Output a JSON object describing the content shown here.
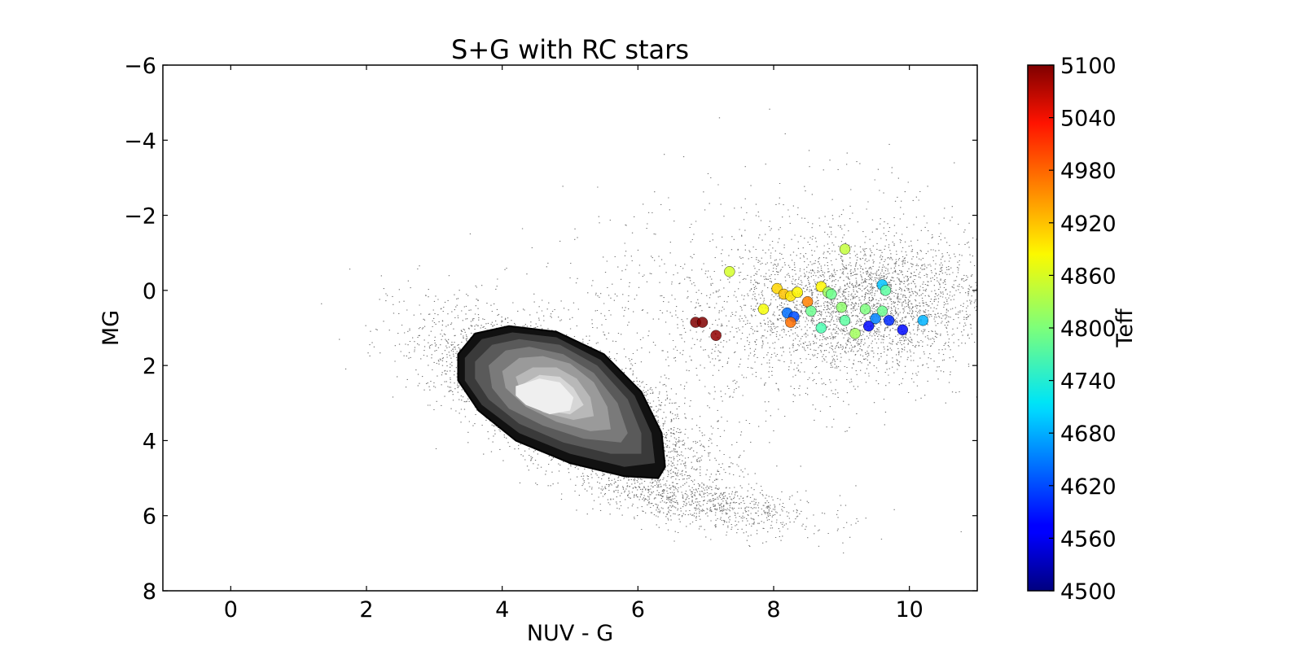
{
  "chart_data": {
    "type": "scatter",
    "title": "S+G with RC stars",
    "xlabel": "NUV - G",
    "ylabel": "MG",
    "xlim": [
      -1,
      11
    ],
    "ylim": [
      8,
      -6
    ],
    "y_inverted": true,
    "xticks": [
      0,
      2,
      4,
      6,
      8,
      10
    ],
    "yticks": [
      -6,
      -4,
      -2,
      0,
      2,
      4,
      6,
      8
    ],
    "grid": false,
    "background_distribution": {
      "description_shown": "dense black point cloud with filled grayscale density contours",
      "color": "#000000",
      "contour_levels": [
        {
          "fill": "#111111",
          "ring": [
            [
              3.35,
              1.7
            ],
            [
              3.6,
              1.15
            ],
            [
              4.1,
              0.95
            ],
            [
              4.8,
              1.1
            ],
            [
              5.5,
              1.7
            ],
            [
              6.05,
              2.7
            ],
            [
              6.35,
              3.8
            ],
            [
              6.4,
              4.7
            ],
            [
              6.3,
              5.0
            ],
            [
              5.8,
              4.95
            ],
            [
              5.0,
              4.6
            ],
            [
              4.2,
              4.0
            ],
            [
              3.65,
              3.2
            ],
            [
              3.35,
              2.4
            ]
          ]
        },
        {
          "fill": "#3a3a3a",
          "ring": [
            [
              3.45,
              1.8
            ],
            [
              3.7,
              1.3
            ],
            [
              4.15,
              1.12
            ],
            [
              4.8,
              1.25
            ],
            [
              5.45,
              1.85
            ],
            [
              5.95,
              2.8
            ],
            [
              6.2,
              3.8
            ],
            [
              6.25,
              4.6
            ],
            [
              5.8,
              4.7
            ],
            [
              5.0,
              4.35
            ],
            [
              4.25,
              3.8
            ],
            [
              3.7,
              3.05
            ],
            [
              3.45,
              2.4
            ]
          ]
        },
        {
          "fill": "#5a5a5a",
          "ring": [
            [
              3.6,
              1.9
            ],
            [
              3.85,
              1.45
            ],
            [
              4.25,
              1.3
            ],
            [
              4.85,
              1.45
            ],
            [
              5.4,
              2.0
            ],
            [
              5.85,
              2.9
            ],
            [
              6.05,
              3.8
            ],
            [
              6.05,
              4.35
            ],
            [
              5.6,
              4.35
            ],
            [
              4.9,
              4.05
            ],
            [
              4.25,
              3.55
            ],
            [
              3.8,
              2.9
            ],
            [
              3.6,
              2.35
            ]
          ]
        },
        {
          "fill": "#7a7a7a",
          "ring": [
            [
              3.8,
              2.0
            ],
            [
              4.05,
              1.6
            ],
            [
              4.4,
              1.5
            ],
            [
              4.9,
              1.7
            ],
            [
              5.35,
              2.2
            ],
            [
              5.7,
              3.0
            ],
            [
              5.85,
              3.8
            ],
            [
              5.75,
              4.05
            ],
            [
              5.2,
              3.95
            ],
            [
              4.6,
              3.6
            ],
            [
              4.1,
              3.15
            ],
            [
              3.85,
              2.6
            ]
          ]
        },
        {
          "fill": "#9a9a9a",
          "ring": [
            [
              4.0,
              2.15
            ],
            [
              4.25,
              1.8
            ],
            [
              4.6,
              1.75
            ],
            [
              5.0,
              1.95
            ],
            [
              5.35,
              2.45
            ],
            [
              5.55,
              3.1
            ],
            [
              5.6,
              3.7
            ],
            [
              5.3,
              3.75
            ],
            [
              4.8,
              3.5
            ],
            [
              4.35,
              3.1
            ],
            [
              4.05,
              2.6
            ]
          ]
        },
        {
          "fill": "#b8b8b8",
          "ring": [
            [
              4.2,
              2.3
            ],
            [
              4.45,
              2.05
            ],
            [
              4.8,
              2.05
            ],
            [
              5.1,
              2.35
            ],
            [
              5.3,
              2.85
            ],
            [
              5.35,
              3.35
            ],
            [
              5.05,
              3.45
            ],
            [
              4.6,
              3.25
            ],
            [
              4.3,
              2.85
            ]
          ]
        },
        {
          "fill": "#d6d6d6",
          "ring": [
            [
              4.3,
              2.5
            ],
            [
              4.55,
              2.25
            ],
            [
              4.85,
              2.3
            ],
            [
              5.05,
              2.6
            ],
            [
              5.2,
              3.05
            ],
            [
              5.0,
              3.3
            ],
            [
              4.65,
              3.2
            ],
            [
              4.4,
              2.95
            ]
          ]
        },
        {
          "fill": "#efefef",
          "ring": [
            [
              4.2,
              2.55
            ],
            [
              4.55,
              2.35
            ],
            [
              4.85,
              2.45
            ],
            [
              5.05,
              2.85
            ],
            [
              5.0,
              3.2
            ],
            [
              4.7,
              3.3
            ],
            [
              4.35,
              3.05
            ],
            [
              4.2,
              2.8
            ]
          ]
        }
      ]
    },
    "colorbar": {
      "label": "Teff",
      "min": 4500,
      "max": 5100,
      "ticks": [
        4500,
        4560,
        4620,
        4680,
        4740,
        4800,
        4860,
        4920,
        4980,
        5040,
        5100
      ],
      "colormap": "jet"
    },
    "rc_stars": [
      {
        "x": 9.05,
        "y": -1.1,
        "teff": 4840
      },
      {
        "x": 7.35,
        "y": -0.5,
        "teff": 4850
      },
      {
        "x": 6.85,
        "y": 0.85,
        "teff": 5100
      },
      {
        "x": 6.95,
        "y": 0.85,
        "teff": 5100
      },
      {
        "x": 7.15,
        "y": 1.2,
        "teff": 5090
      },
      {
        "x": 8.05,
        "y": -0.05,
        "teff": 4900
      },
      {
        "x": 8.15,
        "y": 0.1,
        "teff": 4910
      },
      {
        "x": 8.25,
        "y": 0.15,
        "teff": 4890
      },
      {
        "x": 8.35,
        "y": 0.05,
        "teff": 4880
      },
      {
        "x": 8.5,
        "y": 0.3,
        "teff": 4950
      },
      {
        "x": 8.7,
        "y": -0.1,
        "teff": 4880
      },
      {
        "x": 8.8,
        "y": 0.05,
        "teff": 4820
      },
      {
        "x": 8.85,
        "y": 0.1,
        "teff": 4790
      },
      {
        "x": 7.85,
        "y": 0.5,
        "teff": 4870
      },
      {
        "x": 8.2,
        "y": 0.6,
        "teff": 4640
      },
      {
        "x": 8.3,
        "y": 0.7,
        "teff": 4620
      },
      {
        "x": 8.25,
        "y": 0.85,
        "teff": 4960
      },
      {
        "x": 8.55,
        "y": 0.55,
        "teff": 4790
      },
      {
        "x": 8.7,
        "y": 1.0,
        "teff": 4770
      },
      {
        "x": 9.0,
        "y": 0.45,
        "teff": 4810
      },
      {
        "x": 9.05,
        "y": 0.8,
        "teff": 4780
      },
      {
        "x": 9.2,
        "y": 1.15,
        "teff": 4820
      },
      {
        "x": 9.35,
        "y": 0.5,
        "teff": 4800
      },
      {
        "x": 9.4,
        "y": 0.95,
        "teff": 4580
      },
      {
        "x": 9.5,
        "y": 0.75,
        "teff": 4650
      },
      {
        "x": 9.6,
        "y": -0.15,
        "teff": 4690
      },
      {
        "x": 9.65,
        "y": 0.0,
        "teff": 4780
      },
      {
        "x": 9.6,
        "y": 0.55,
        "teff": 4790
      },
      {
        "x": 9.7,
        "y": 0.8,
        "teff": 4600
      },
      {
        "x": 9.9,
        "y": 1.05,
        "teff": 4580
      },
      {
        "x": 10.2,
        "y": 0.8,
        "teff": 4680
      }
    ]
  }
}
